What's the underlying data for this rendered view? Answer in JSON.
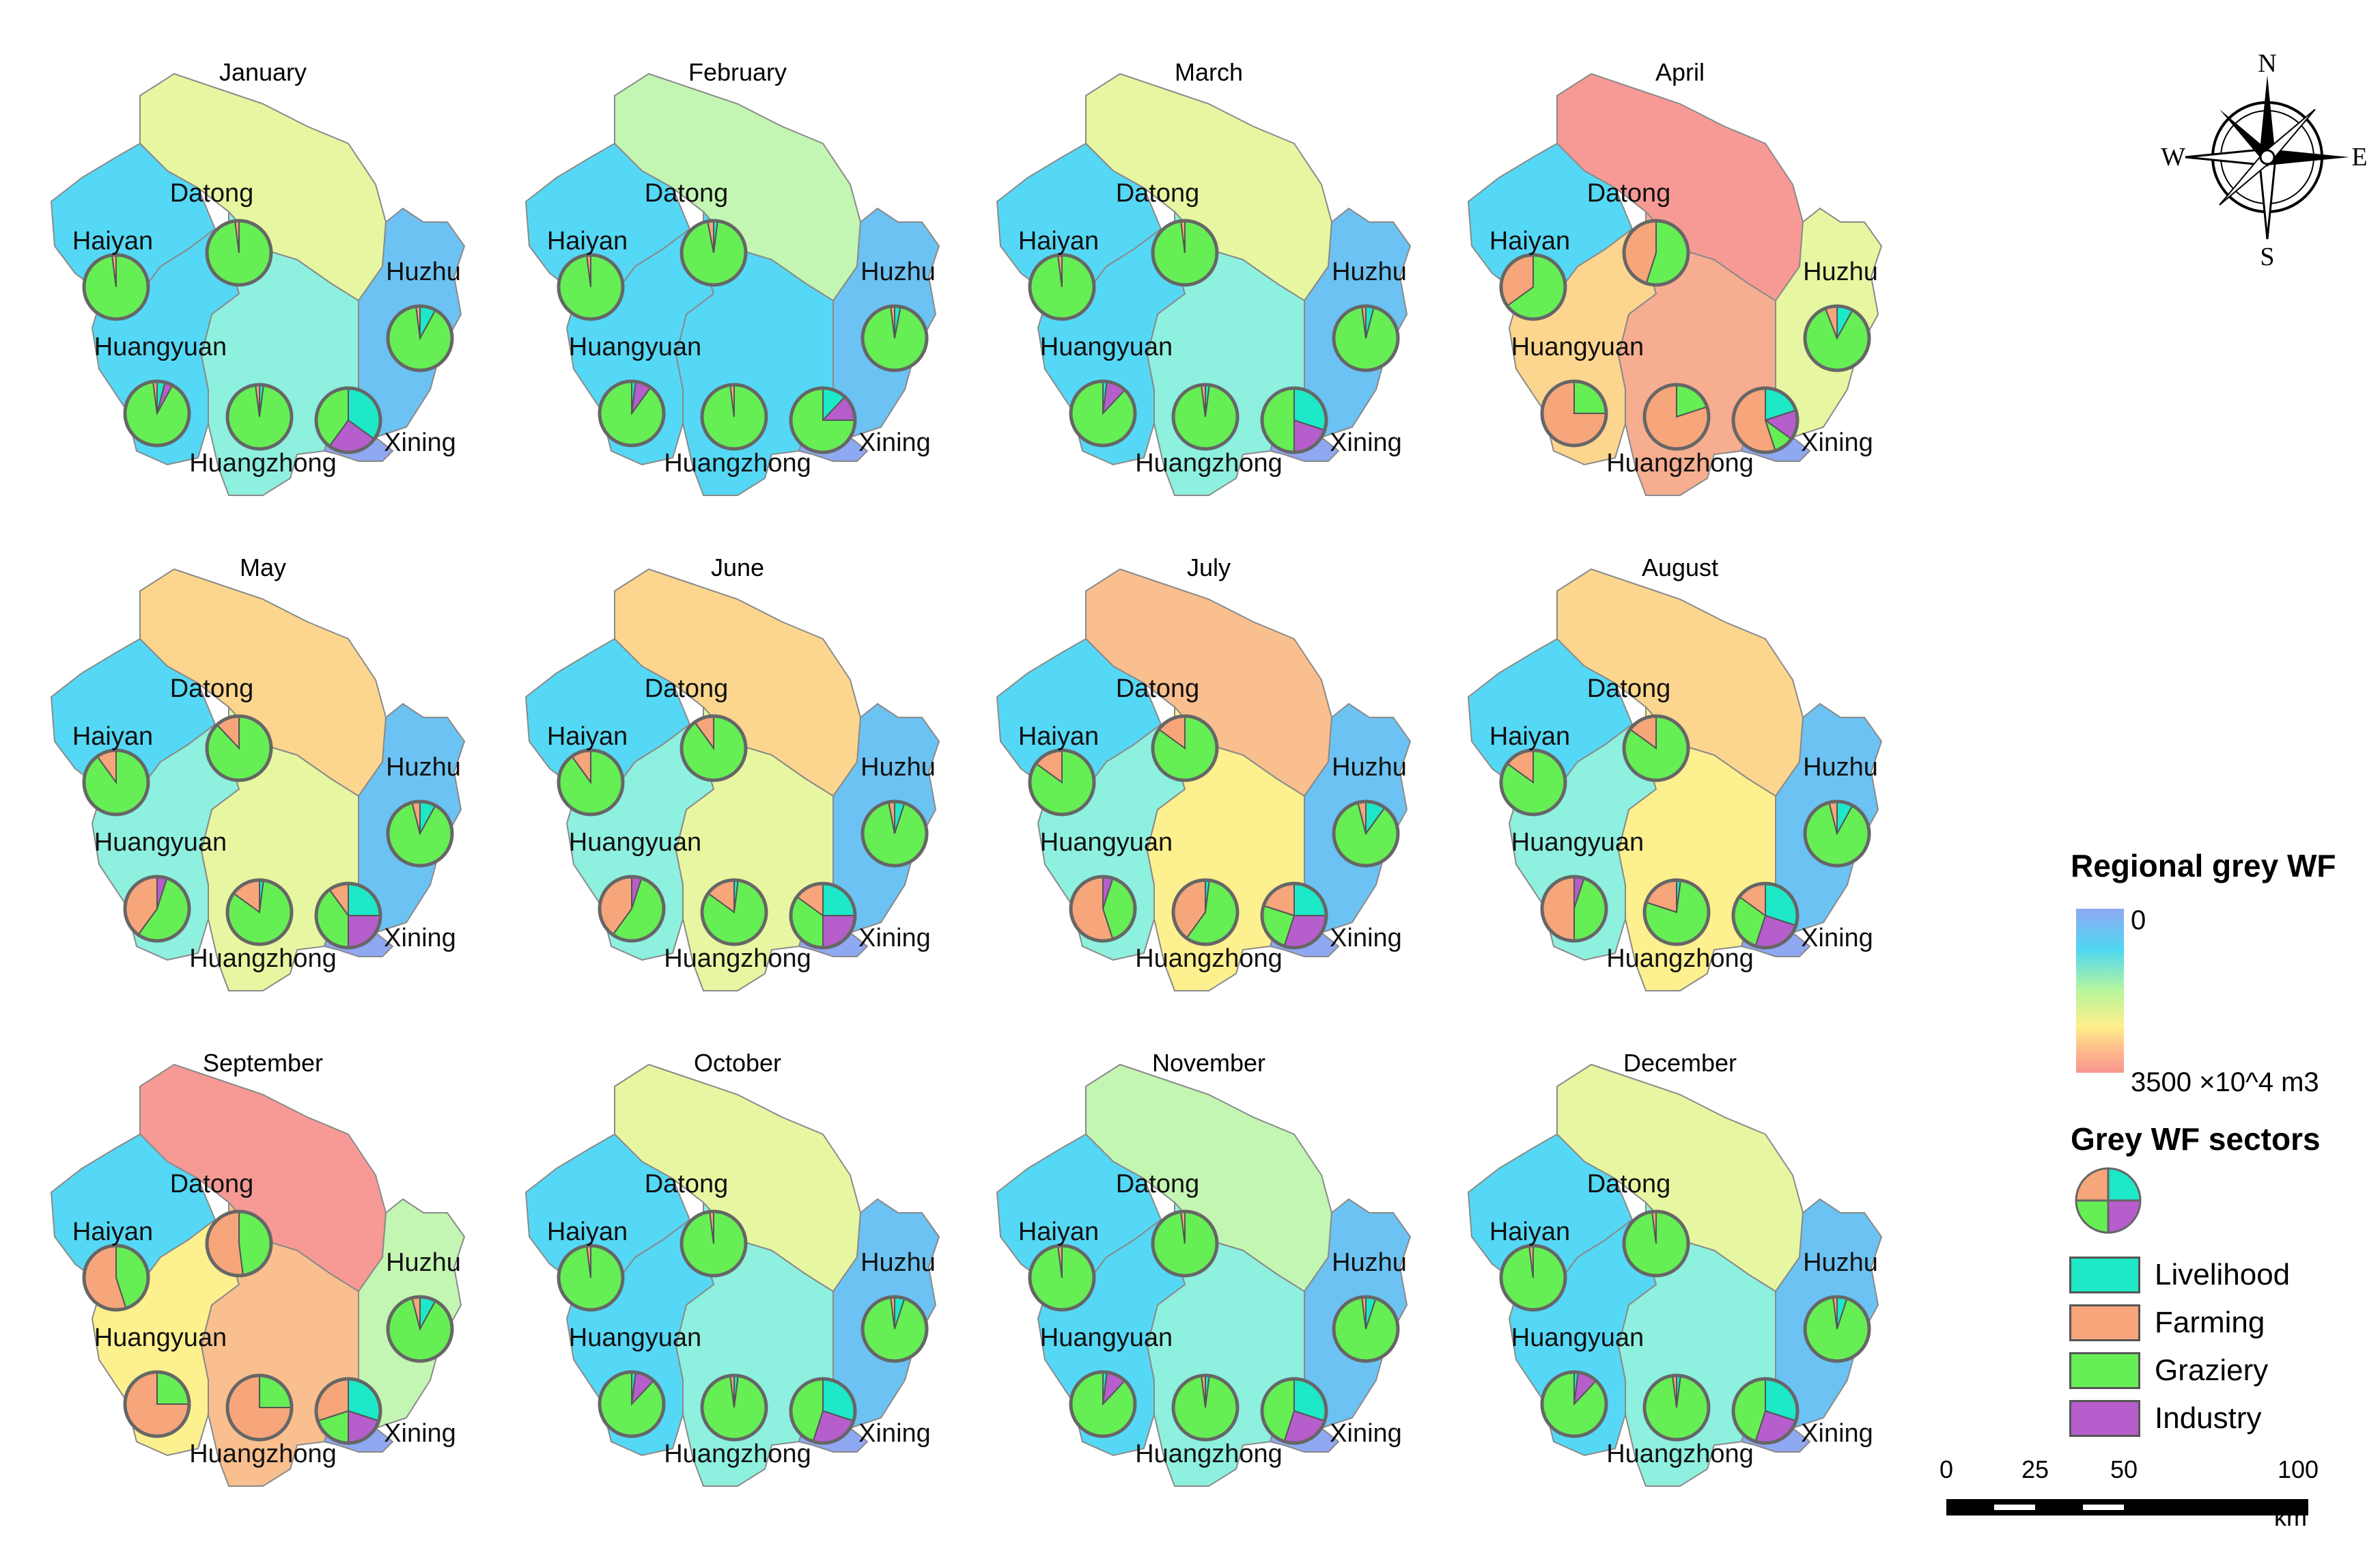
{
  "colors": {
    "livelihood": "#1de8c8",
    "farming": "#f7a57a",
    "graziery": "#66ee55",
    "industry": "#b65ecb",
    "region_palette": {
      "1": "#8fa8f2",
      "2": "#6cc2f2",
      "3": "#55d8f5",
      "4": "#8ef0df",
      "5": "#c3f6b2",
      "6": "#e7f7a1",
      "7": "#fdf08e",
      "8": "#fcd68e",
      "9": "#f9bf8e",
      "10": "#f6ad90",
      "11": "#f79a96"
    }
  },
  "counties": [
    "Datong",
    "Haiyan",
    "Huzhu",
    "Huangyuan",
    "Huangzhong",
    "Xining"
  ],
  "months": [
    {
      "name": "January",
      "regional_level": {
        "Datong": 6,
        "Haiyan": 3,
        "Huzhu": 2,
        "Huangyuan": 3,
        "Huangzhong": 4,
        "Xining": 1
      },
      "sectors": {
        "Datong": {
          "livelihood": 0,
          "farming": 2,
          "graziery": 98,
          "industry": 0
        },
        "Haiyan": {
          "livelihood": 0,
          "farming": 2,
          "graziery": 98,
          "industry": 0
        },
        "Huzhu": {
          "livelihood": 8,
          "farming": 2,
          "graziery": 90,
          "industry": 0
        },
        "Huangyuan": {
          "livelihood": 4,
          "farming": 2,
          "graziery": 90,
          "industry": 4
        },
        "Huangzhong": {
          "livelihood": 2,
          "farming": 2,
          "graziery": 96,
          "industry": 0
        },
        "Xining": {
          "livelihood": 35,
          "farming": 0,
          "graziery": 40,
          "industry": 25
        }
      }
    },
    {
      "name": "February",
      "regional_level": {
        "Datong": 5,
        "Haiyan": 3,
        "Huzhu": 2,
        "Huangyuan": 3,
        "Huangzhong": 3,
        "Xining": 1
      },
      "sectors": {
        "Datong": {
          "livelihood": 2,
          "farming": 3,
          "graziery": 95,
          "industry": 0
        },
        "Haiyan": {
          "livelihood": 0,
          "farming": 2,
          "graziery": 98,
          "industry": 0
        },
        "Huzhu": {
          "livelihood": 3,
          "farming": 2,
          "graziery": 95,
          "industry": 0
        },
        "Huangyuan": {
          "livelihood": 2,
          "farming": 0,
          "graziery": 90,
          "industry": 8
        },
        "Huangzhong": {
          "livelihood": 0,
          "farming": 2,
          "graziery": 98,
          "industry": 0
        },
        "Xining": {
          "livelihood": 12,
          "farming": 0,
          "graziery": 75,
          "industry": 13
        }
      }
    },
    {
      "name": "March",
      "regional_level": {
        "Datong": 6,
        "Haiyan": 3,
        "Huzhu": 2,
        "Huangyuan": 3,
        "Huangzhong": 4,
        "Xining": 1
      },
      "sectors": {
        "Datong": {
          "livelihood": 0,
          "farming": 2,
          "graziery": 98,
          "industry": 0
        },
        "Haiyan": {
          "livelihood": 0,
          "farming": 2,
          "graziery": 98,
          "industry": 0
        },
        "Huzhu": {
          "livelihood": 4,
          "farming": 2,
          "graziery": 94,
          "industry": 0
        },
        "Huangyuan": {
          "livelihood": 2,
          "farming": 0,
          "graziery": 88,
          "industry": 10
        },
        "Huangzhong": {
          "livelihood": 2,
          "farming": 2,
          "graziery": 96,
          "industry": 0
        },
        "Xining": {
          "livelihood": 30,
          "farming": 0,
          "graziery": 50,
          "industry": 20
        }
      }
    },
    {
      "name": "April",
      "regional_level": {
        "Datong": 11,
        "Haiyan": 3,
        "Huzhu": 6,
        "Huangyuan": 8,
        "Huangzhong": 10,
        "Xining": 1
      },
      "sectors": {
        "Datong": {
          "livelihood": 0,
          "farming": 45,
          "graziery": 55,
          "industry": 0
        },
        "Haiyan": {
          "livelihood": 0,
          "farming": 35,
          "graziery": 65,
          "industry": 0
        },
        "Huzhu": {
          "livelihood": 8,
          "farming": 6,
          "graziery": 86,
          "industry": 0
        },
        "Huangyuan": {
          "livelihood": 0,
          "farming": 75,
          "graziery": 25,
          "industry": 0
        },
        "Huangzhong": {
          "livelihood": 0,
          "farming": 80,
          "graziery": 20,
          "industry": 0
        },
        "Xining": {
          "livelihood": 20,
          "farming": 55,
          "graziery": 10,
          "industry": 15
        }
      }
    },
    {
      "name": "May",
      "regional_level": {
        "Datong": 8,
        "Haiyan": 3,
        "Huzhu": 2,
        "Huangyuan": 4,
        "Huangzhong": 6,
        "Xining": 1
      },
      "sectors": {
        "Datong": {
          "livelihood": 0,
          "farming": 12,
          "graziery": 88,
          "industry": 0
        },
        "Haiyan": {
          "livelihood": 0,
          "farming": 10,
          "graziery": 90,
          "industry": 0
        },
        "Huzhu": {
          "livelihood": 8,
          "farming": 4,
          "graziery": 88,
          "industry": 0
        },
        "Huangyuan": {
          "livelihood": 0,
          "farming": 40,
          "graziery": 55,
          "industry": 5
        },
        "Huangzhong": {
          "livelihood": 2,
          "farming": 15,
          "graziery": 83,
          "industry": 0
        },
        "Xining": {
          "livelihood": 25,
          "farming": 10,
          "graziery": 40,
          "industry": 25
        }
      }
    },
    {
      "name": "June",
      "regional_level": {
        "Datong": 8,
        "Haiyan": 3,
        "Huzhu": 2,
        "Huangyuan": 4,
        "Huangzhong": 6,
        "Xining": 1
      },
      "sectors": {
        "Datong": {
          "livelihood": 0,
          "farming": 10,
          "graziery": 90,
          "industry": 0
        },
        "Haiyan": {
          "livelihood": 0,
          "farming": 10,
          "graziery": 90,
          "industry": 0
        },
        "Huzhu": {
          "livelihood": 5,
          "farming": 3,
          "graziery": 92,
          "industry": 0
        },
        "Huangyuan": {
          "livelihood": 0,
          "farming": 40,
          "graziery": 55,
          "industry": 5
        },
        "Huangzhong": {
          "livelihood": 2,
          "farming": 15,
          "graziery": 83,
          "industry": 0
        },
        "Xining": {
          "livelihood": 25,
          "farming": 15,
          "graziery": 35,
          "industry": 25
        }
      }
    },
    {
      "name": "July",
      "regional_level": {
        "Datong": 9,
        "Haiyan": 3,
        "Huzhu": 2,
        "Huangyuan": 4,
        "Huangzhong": 7,
        "Xining": 1
      },
      "sectors": {
        "Datong": {
          "livelihood": 0,
          "farming": 15,
          "graziery": 85,
          "industry": 0
        },
        "Haiyan": {
          "livelihood": 0,
          "farming": 15,
          "graziery": 85,
          "industry": 0
        },
        "Huzhu": {
          "livelihood": 10,
          "farming": 4,
          "graziery": 86,
          "industry": 0
        },
        "Huangyuan": {
          "livelihood": 0,
          "farming": 55,
          "graziery": 40,
          "industry": 5
        },
        "Huangzhong": {
          "livelihood": 2,
          "farming": 40,
          "graziery": 58,
          "industry": 0
        },
        "Xining": {
          "livelihood": 25,
          "farming": 20,
          "graziery": 25,
          "industry": 30
        }
      }
    },
    {
      "name": "August",
      "regional_level": {
        "Datong": 8,
        "Haiyan": 3,
        "Huzhu": 2,
        "Huangyuan": 4,
        "Huangzhong": 7,
        "Xining": 1
      },
      "sectors": {
        "Datong": {
          "livelihood": 0,
          "farming": 15,
          "graziery": 85,
          "industry": 0
        },
        "Haiyan": {
          "livelihood": 0,
          "farming": 15,
          "graziery": 85,
          "industry": 0
        },
        "Huzhu": {
          "livelihood": 8,
          "farming": 4,
          "graziery": 88,
          "industry": 0
        },
        "Huangyuan": {
          "livelihood": 0,
          "farming": 50,
          "graziery": 45,
          "industry": 5
        },
        "Huangzhong": {
          "livelihood": 2,
          "farming": 20,
          "graziery": 78,
          "industry": 0
        },
        "Xining": {
          "livelihood": 30,
          "farming": 15,
          "graziery": 30,
          "industry": 25
        }
      }
    },
    {
      "name": "September",
      "regional_level": {
        "Datong": 11,
        "Haiyan": 3,
        "Huzhu": 5,
        "Huangyuan": 7,
        "Huangzhong": 9,
        "Xining": 1
      },
      "sectors": {
        "Datong": {
          "livelihood": 0,
          "farming": 52,
          "graziery": 48,
          "industry": 0
        },
        "Haiyan": {
          "livelihood": 0,
          "farming": 55,
          "graziery": 45,
          "industry": 0
        },
        "Huzhu": {
          "livelihood": 8,
          "farming": 4,
          "graziery": 88,
          "industry": 0
        },
        "Huangyuan": {
          "livelihood": 0,
          "farming": 75,
          "graziery": 25,
          "industry": 0
        },
        "Huangzhong": {
          "livelihood": 0,
          "farming": 75,
          "graziery": 25,
          "industry": 0
        },
        "Xining": {
          "livelihood": 30,
          "farming": 30,
          "graziery": 20,
          "industry": 20
        }
      }
    },
    {
      "name": "October",
      "regional_level": {
        "Datong": 6,
        "Haiyan": 3,
        "Huzhu": 2,
        "Huangyuan": 3,
        "Huangzhong": 4,
        "Xining": 1
      },
      "sectors": {
        "Datong": {
          "livelihood": 0,
          "farming": 2,
          "graziery": 98,
          "industry": 0
        },
        "Haiyan": {
          "livelihood": 0,
          "farming": 2,
          "graziery": 98,
          "industry": 0
        },
        "Huzhu": {
          "livelihood": 5,
          "farming": 2,
          "graziery": 93,
          "industry": 0
        },
        "Huangyuan": {
          "livelihood": 2,
          "farming": 0,
          "graziery": 88,
          "industry": 10
        },
        "Huangzhong": {
          "livelihood": 2,
          "farming": 2,
          "graziery": 96,
          "industry": 0
        },
        "Xining": {
          "livelihood": 30,
          "farming": 0,
          "graziery": 45,
          "industry": 25
        }
      }
    },
    {
      "name": "November",
      "regional_level": {
        "Datong": 5,
        "Haiyan": 3,
        "Huzhu": 2,
        "Huangyuan": 3,
        "Huangzhong": 4,
        "Xining": 1
      },
      "sectors": {
        "Datong": {
          "livelihood": 0,
          "farming": 2,
          "graziery": 98,
          "industry": 0
        },
        "Haiyan": {
          "livelihood": 0,
          "farming": 2,
          "graziery": 98,
          "industry": 0
        },
        "Huzhu": {
          "livelihood": 5,
          "farming": 2,
          "graziery": 93,
          "industry": 0
        },
        "Huangyuan": {
          "livelihood": 2,
          "farming": 0,
          "graziery": 88,
          "industry": 10
        },
        "Huangzhong": {
          "livelihood": 2,
          "farming": 2,
          "graziery": 96,
          "industry": 0
        },
        "Xining": {
          "livelihood": 30,
          "farming": 0,
          "graziery": 45,
          "industry": 25
        }
      }
    },
    {
      "name": "December",
      "regional_level": {
        "Datong": 6,
        "Haiyan": 3,
        "Huzhu": 2,
        "Huangyuan": 3,
        "Huangzhong": 4,
        "Xining": 1
      },
      "sectors": {
        "Datong": {
          "livelihood": 0,
          "farming": 2,
          "graziery": 98,
          "industry": 0
        },
        "Haiyan": {
          "livelihood": 0,
          "farming": 2,
          "graziery": 98,
          "industry": 0
        },
        "Huzhu": {
          "livelihood": 5,
          "farming": 2,
          "graziery": 93,
          "industry": 0
        },
        "Huangyuan": {
          "livelihood": 2,
          "farming": 0,
          "graziery": 88,
          "industry": 10
        },
        "Huangzhong": {
          "livelihood": 2,
          "farming": 2,
          "graziery": 96,
          "industry": 0
        },
        "Xining": {
          "livelihood": 30,
          "farming": 0,
          "graziery": 45,
          "industry": 25
        }
      }
    }
  ],
  "legend": {
    "regional_title": "Regional grey WF",
    "ramp_min": "0",
    "ramp_max": "3500 ×10^4 m3",
    "sectors_title": "Grey WF sectors",
    "items": [
      "Livelihood",
      "Farming",
      "Graziery",
      "Industry"
    ]
  },
  "compass": {
    "n": "N",
    "s": "S",
    "e": "E",
    "w": "W"
  },
  "scalebar": {
    "ticks": [
      "0",
      "25",
      "50",
      "100"
    ],
    "unit": "km"
  }
}
